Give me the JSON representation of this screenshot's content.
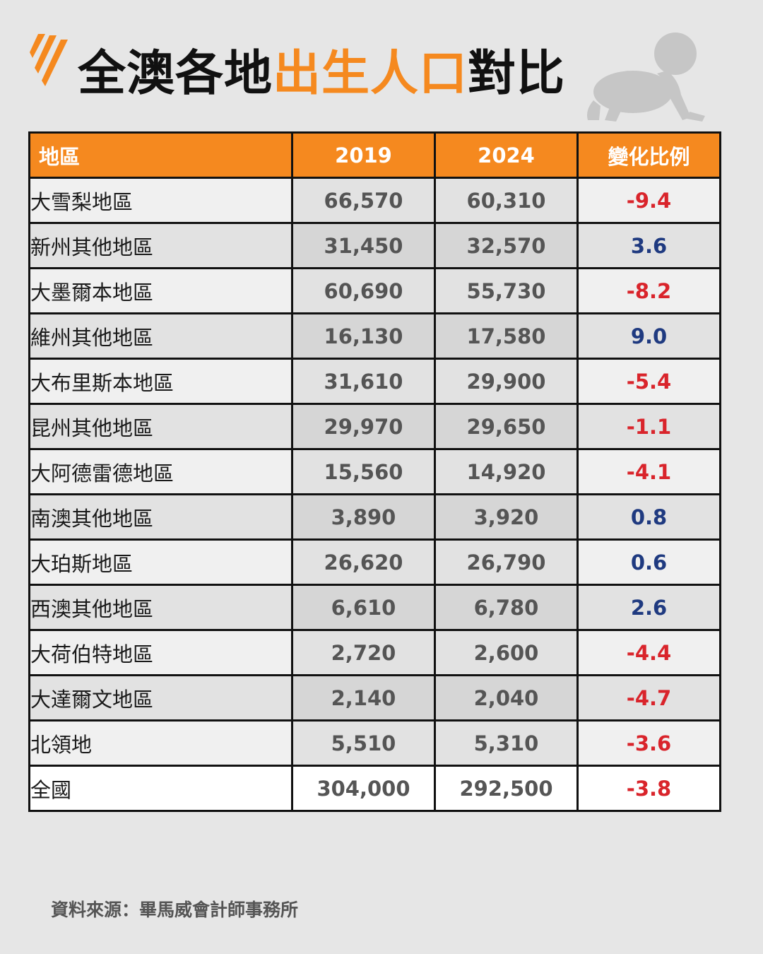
{
  "header": {
    "title_prefix": "全澳各地",
    "title_highlight": "出生人口",
    "title_suffix": "對比",
    "logo_icon": "sbs-logo-icon",
    "decor_icon": "crawling-baby-icon"
  },
  "colors": {
    "accent": "#f5891f",
    "negative": "#d9242b",
    "positive": "#1f3a80"
  },
  "chart_data": {
    "type": "table",
    "title": "全澳各地出生人口對比",
    "columns": [
      "地區",
      "2019",
      "2024",
      "變化比例"
    ],
    "rows": [
      {
        "region": "大雪梨地區",
        "y2019": "66,570",
        "y2024": "60,310",
        "change": "-9.4",
        "dir": "neg"
      },
      {
        "region": "新州其他地區",
        "y2019": "31,450",
        "y2024": "32,570",
        "change": "3.6",
        "dir": "pos"
      },
      {
        "region": "大墨爾本地區",
        "y2019": "60,690",
        "y2024": "55,730",
        "change": "-8.2",
        "dir": "neg"
      },
      {
        "region": "維州其他地區",
        "y2019": "16,130",
        "y2024": "17,580",
        "change": "9.0",
        "dir": "pos"
      },
      {
        "region": "大布里斯本地區",
        "y2019": "31,610",
        "y2024": "29,900",
        "change": "-5.4",
        "dir": "neg"
      },
      {
        "region": "昆州其他地區",
        "y2019": "29,970",
        "y2024": "29,650",
        "change": "-1.1",
        "dir": "neg"
      },
      {
        "region": "大阿德雷德地區",
        "y2019": "15,560",
        "y2024": "14,920",
        "change": "-4.1",
        "dir": "neg"
      },
      {
        "region": "南澳其他地區",
        "y2019": "3,890",
        "y2024": "3,920",
        "change": "0.8",
        "dir": "pos"
      },
      {
        "region": "大珀斯地區",
        "y2019": "26,620",
        "y2024": "26,790",
        "change": "0.6",
        "dir": "pos"
      },
      {
        "region": "西澳其他地區",
        "y2019": "6,610",
        "y2024": "6,780",
        "change": "2.6",
        "dir": "pos"
      },
      {
        "region": "大荷伯特地區",
        "y2019": "2,720",
        "y2024": "2,600",
        "change": "-4.4",
        "dir": "neg"
      },
      {
        "region": "大達爾文地區",
        "y2019": "2,140",
        "y2024": "2,040",
        "change": "-4.7",
        "dir": "neg"
      },
      {
        "region": "北領地",
        "y2019": "5,510",
        "y2024": "5,310",
        "change": "-3.6",
        "dir": "neg"
      }
    ],
    "total": {
      "region": "全國",
      "y2019": "304,000",
      "y2024": "292,500",
      "change": "-3.8",
      "dir": "neg"
    }
  },
  "footer": {
    "source": "資料來源：畢馬威會計師事務所"
  }
}
